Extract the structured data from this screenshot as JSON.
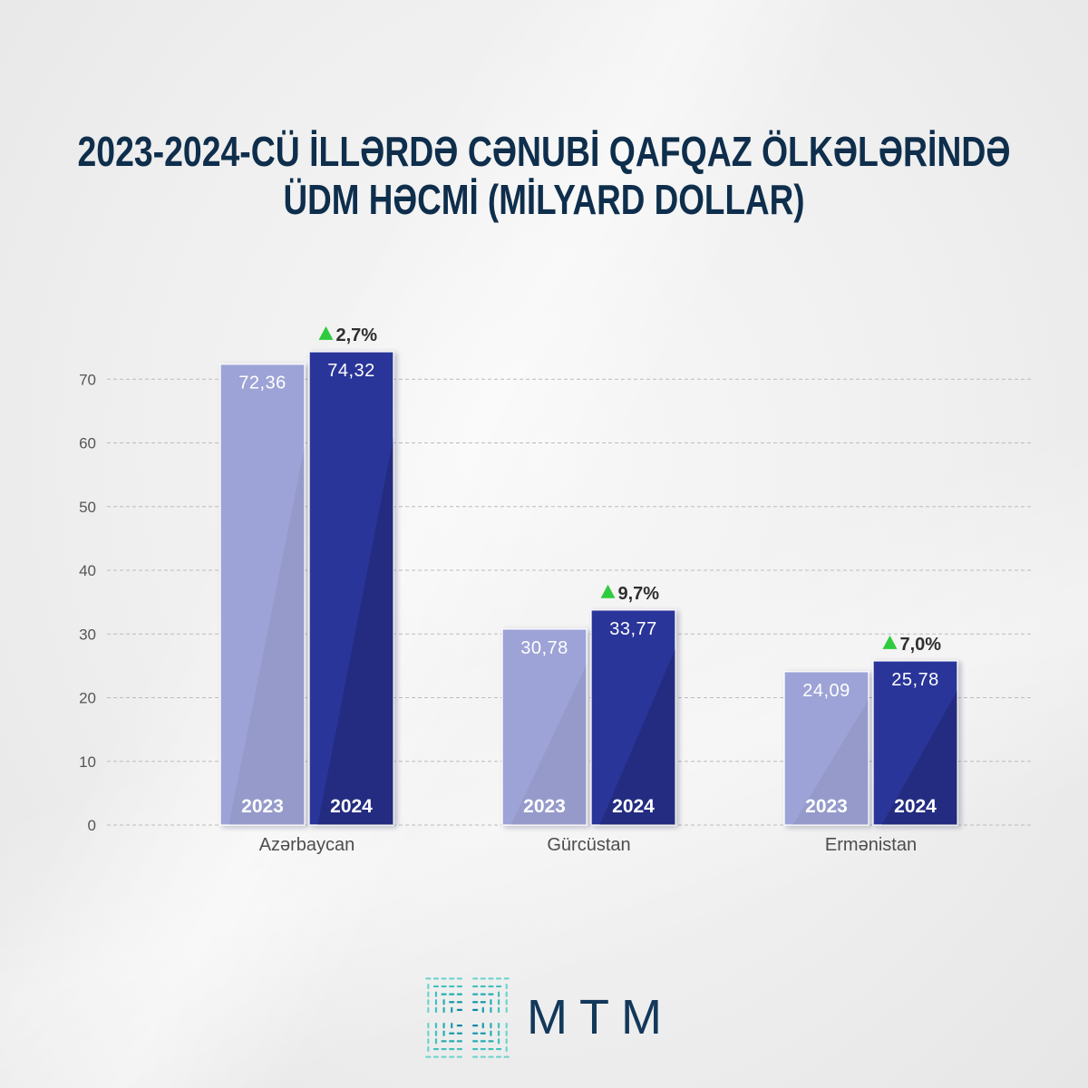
{
  "chart_data": {
    "type": "bar",
    "title": [
      "2023-2024-CÜ İLLƏRDƏ CƏNUBİ QAFQAZ ÖLKƏLƏRİNDƏ",
      "ÜDM HƏCMİ (MİLYARD DOLLAR)"
    ],
    "categories": [
      "Azərbaycan",
      "Gürcüstan",
      "Ermənistan"
    ],
    "series": [
      {
        "name": "2023",
        "values": [
          72.36,
          30.78,
          24.09
        ],
        "labels": [
          "72,36",
          "30,78",
          "24,09"
        ],
        "color": "#9da3d6"
      },
      {
        "name": "2024",
        "values": [
          74.32,
          33.77,
          25.78
        ],
        "labels": [
          "74,32",
          "33,77",
          "25,78"
        ],
        "color": "#2b3599"
      }
    ],
    "annotations": {
      "growth": [
        "2,7%",
        "9,7%",
        "7,0%"
      ],
      "icon": "triangle-up-icon",
      "icon_color": "#2fcb3e"
    },
    "ylim": [
      0,
      80
    ],
    "yticks": [
      0,
      10,
      20,
      30,
      40,
      50,
      60,
      70
    ],
    "grid": true
  },
  "logo": {
    "icon": "mtm-logo-icon",
    "text": "MTM",
    "text_color": "#12385a",
    "icon_colors": [
      "#0e8aa1",
      "#179bab",
      "#26adb3",
      "#43c0be",
      "#6fd3cf"
    ]
  },
  "colors": {
    "title": "#0e2e4c",
    "background": "#eeeeee"
  }
}
